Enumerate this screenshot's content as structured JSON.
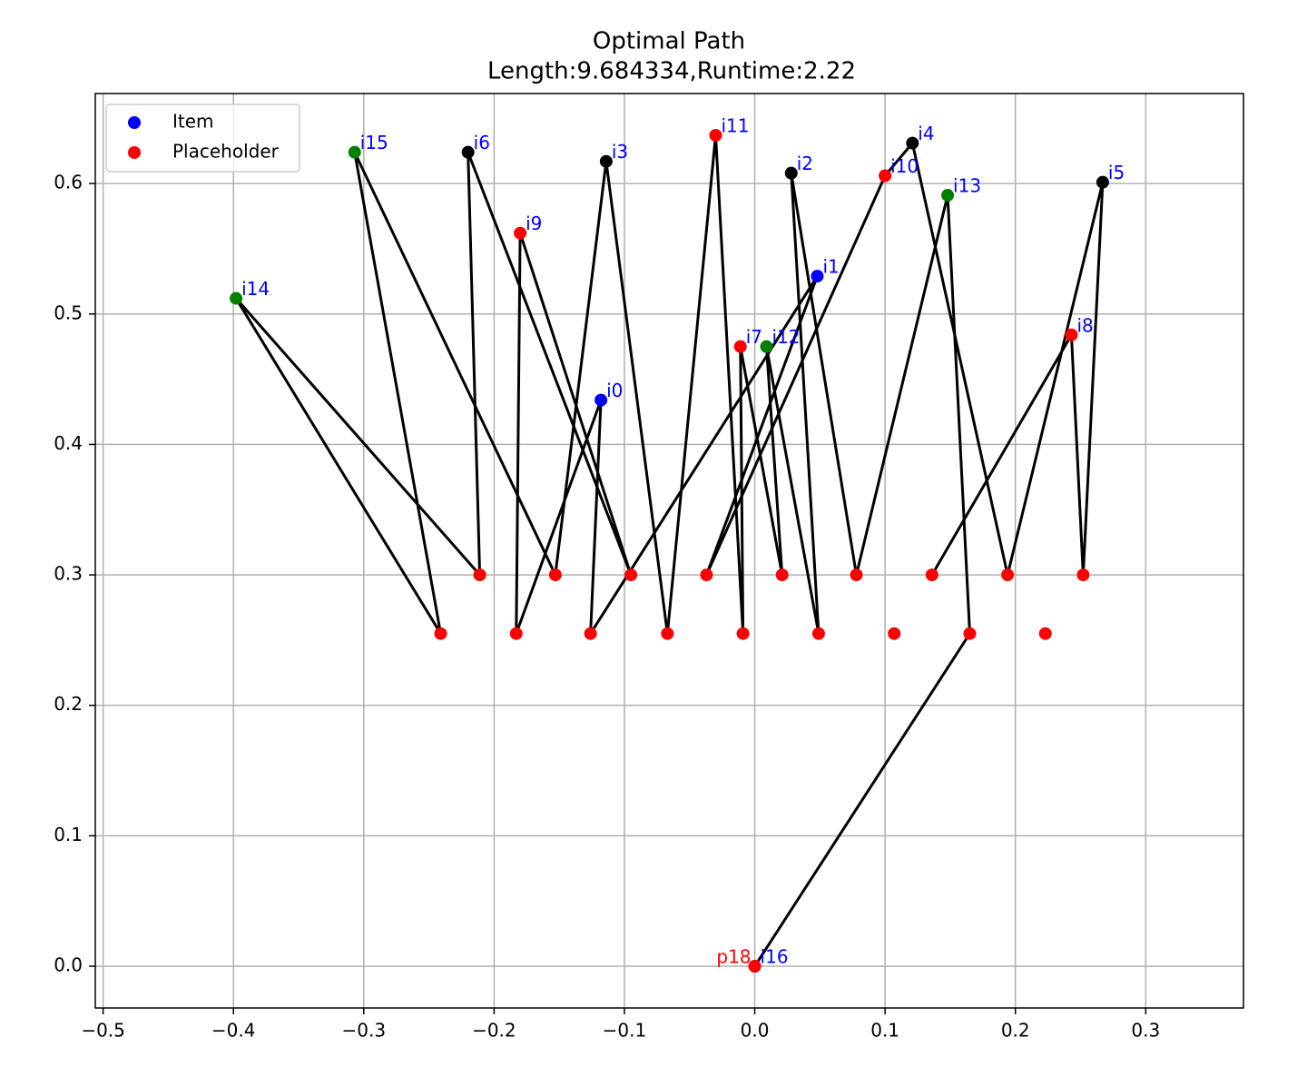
{
  "chart_data": {
    "type": "scatter",
    "title": "Optimal Path",
    "subtitle": "Length:9.684334,Runtime:2.22",
    "xlim": [
      -0.506,
      0.375
    ],
    "ylim": [
      -0.032,
      0.669
    ],
    "xticks": [
      {
        "value": -0.5,
        "label": "−0.5"
      },
      {
        "value": -0.4,
        "label": "−0.4"
      },
      {
        "value": -0.3,
        "label": "−0.3"
      },
      {
        "value": -0.2,
        "label": "−0.2"
      },
      {
        "value": -0.1,
        "label": "−0.1"
      },
      {
        "value": 0,
        "label": "0.0"
      },
      0.1,
      0.2,
      0.3
    ],
    "yticks": [
      {
        "value": 0,
        "label": "0.0"
      },
      0.1,
      0.2,
      0.3,
      0.4,
      0.5,
      0.6
    ],
    "grid": true,
    "legend": "upper left",
    "path": {
      "color": "#000000",
      "x": [
        0,
        0.165,
        0.148,
        0.078,
        0.028,
        0.049,
        0.009,
        0.021,
        -0.011,
        -0.009,
        -0.03,
        -0.067,
        -0.114,
        -0.153,
        -0.307,
        -0.241,
        -0.398,
        -0.211,
        -0.22,
        -0.095,
        -0.18,
        -0.183,
        -0.118,
        -0.126,
        0.048,
        -0.037,
        0.1,
        0.121,
        0.194,
        0.267,
        0.252,
        0.243,
        0.136
      ],
      "y": [
        0,
        0.255,
        0.591,
        0.3,
        0.608,
        0.255,
        0.475,
        0.3,
        0.475,
        0.255,
        0.637,
        0.255,
        0.617,
        0.3,
        0.624,
        0.255,
        0.512,
        0.3,
        0.624,
        0.3,
        0.562,
        0.255,
        0.434,
        0.255,
        0.529,
        0.3,
        0.606,
        0.631,
        0.3,
        0.601,
        0.3,
        0.484,
        0.3
      ]
    },
    "series": [
      {
        "name": "Item",
        "color": "#0000ff",
        "label_color": "#0000ff",
        "x": [
          0,
          -0.118,
          0.048
        ],
        "y": [
          0,
          0.434,
          0.529
        ],
        "labels": [
          "i16",
          "i0",
          "i1"
        ]
      },
      {
        "name": "Placeholder",
        "color": "#ff0000",
        "label_color": "#ff0000",
        "x": [
          0,
          -0.211,
          -0.153,
          -0.095,
          -0.037,
          0.021,
          0.078,
          0.136,
          0.194,
          0.252,
          -0.241,
          -0.183,
          -0.126,
          -0.067,
          -0.009,
          0.049,
          0.107,
          0.165,
          0.223
        ],
        "y": [
          0,
          0.3,
          0.3,
          0.3,
          0.3,
          0.3,
          0.3,
          0.3,
          0.3,
          0.3,
          0.255,
          0.255,
          0.255,
          0.255,
          0.255,
          0.255,
          0.255,
          0.255,
          0.255
        ],
        "labels": [
          "p18",
          null,
          null,
          null,
          null,
          null,
          null,
          null,
          null,
          null,
          null,
          null,
          null,
          null,
          null,
          null,
          null,
          null,
          null
        ]
      },
      {
        "color": "#ff0000",
        "label_color": "#0000ff",
        "x": [
          -0.011,
          0.243,
          -0.18,
          0.1,
          -0.03
        ],
        "y": [
          0.475,
          0.484,
          0.562,
          0.606,
          0.637
        ],
        "labels": [
          "i7",
          "i8",
          "i9",
          "i10",
          "i11"
        ]
      },
      {
        "color": "#000000",
        "label_color": "#0000ff",
        "x": [
          0.028,
          -0.114,
          0.121,
          0.267,
          -0.22
        ],
        "y": [
          0.608,
          0.617,
          0.631,
          0.601,
          0.624
        ],
        "labels": [
          "i2",
          "i3",
          "i4",
          "i5",
          "i6"
        ]
      },
      {
        "color": "#008000",
        "label_color": "#0000ff",
        "x": [
          0.009,
          0.148,
          -0.398,
          -0.307
        ],
        "y": [
          0.475,
          0.591,
          0.512,
          0.624
        ],
        "labels": [
          "i12",
          "i13",
          "i14",
          "i15"
        ]
      }
    ]
  }
}
